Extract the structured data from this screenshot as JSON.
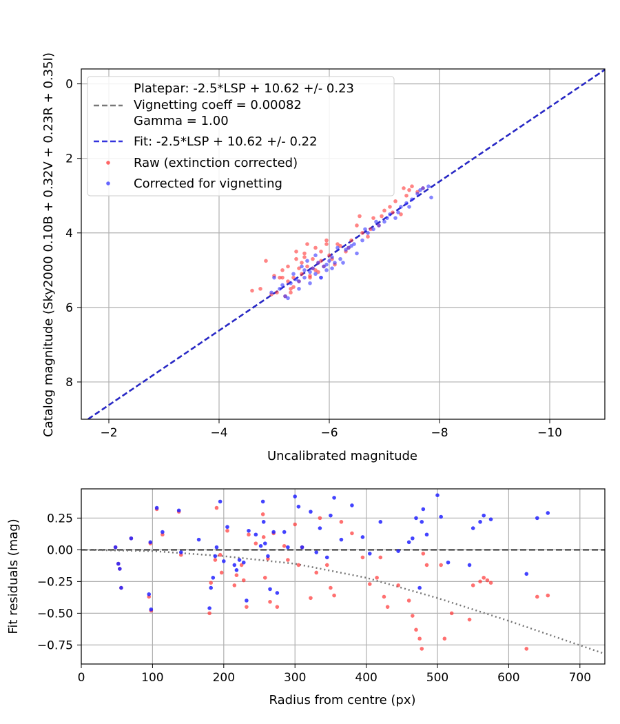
{
  "chart_data": [
    {
      "type": "scatter",
      "xlabel": "Uncalibrated magnitude",
      "ylabel": "Catalog magnitude (Sky2000 0.10B + 0.32V + 0.23R + 0.35I)",
      "xlim": [
        -1.5,
        -11.0
      ],
      "ylim": [
        9.0,
        -0.4
      ],
      "x_inverted": true,
      "y_inverted": true,
      "xticks": [
        -2,
        -4,
        -6,
        -8,
        -10
      ],
      "xtick_labels": [
        "−2",
        "−4",
        "−6",
        "−8",
        "−10"
      ],
      "yticks": [
        0,
        2,
        4,
        6,
        8
      ],
      "ytick_labels": [
        "0",
        "2",
        "4",
        "6",
        "8"
      ],
      "grid": true,
      "legend_position": "top-left",
      "legend": [
        {
          "label": "Platepar: -2.5*LSP + 10.62 +/- 0.23\nVignetting coeff = 0.00082\nGamma = 1.00",
          "style": "dashed",
          "color": "#777777"
        },
        {
          "label": "Fit: -2.5*LSP + 10.62 +/- 0.22",
          "style": "dashed",
          "color": "#3333dd"
        },
        {
          "label": "Raw (extinction corrected)",
          "style": "marker",
          "color": "#ff3333"
        },
        {
          "label": "Corrected for vignetting",
          "style": "marker",
          "color": "#3333ff"
        }
      ],
      "lines": [
        {
          "name": "Platepar",
          "slope": 1.0,
          "intercept": 10.62,
          "color": "#777777"
        },
        {
          "name": "Fit",
          "slope": 1.0,
          "intercept": 10.62,
          "color": "#2222cc"
        }
      ],
      "series": [
        {
          "name": "Raw (extinction corrected)",
          "color": "#ff3333",
          "x": [
            -4.6,
            -4.75,
            -4.85,
            -5.0,
            -5.05,
            -5.1,
            -5.15,
            -5.2,
            -5.25,
            -5.3,
            -5.3,
            -5.35,
            -5.4,
            -5.4,
            -5.45,
            -5.5,
            -5.5,
            -5.55,
            -5.6,
            -5.6,
            -5.65,
            -5.7,
            -5.7,
            -5.75,
            -5.8,
            -5.8,
            -5.85,
            -5.9,
            -5.95,
            -6.0,
            -6.05,
            -6.1,
            -6.2,
            -6.3,
            -6.4,
            -6.5,
            -6.6,
            -6.7,
            -6.8,
            -6.9,
            -7.0,
            -7.1,
            -7.2,
            -7.3,
            -7.35,
            -7.4,
            -7.5,
            -7.6,
            -7.7,
            -4.95,
            -5.25,
            -5.45,
            -5.55,
            -5.75,
            -5.95,
            -6.15,
            -6.35,
            -6.55,
            -6.75,
            -6.95,
            -7.15,
            -7.45,
            -5.15,
            -5.35,
            -5.65,
            -5.85
          ],
          "y": [
            5.55,
            5.5,
            4.75,
            5.15,
            5.6,
            5.2,
            5.0,
            5.7,
            4.9,
            5.5,
            5.6,
            5.2,
            4.7,
            4.5,
            5.3,
            4.8,
            5.1,
            4.55,
            4.9,
            4.3,
            5.2,
            4.7,
            4.95,
            5.0,
            4.8,
            5.05,
            4.5,
            4.9,
            4.3,
            4.6,
            4.7,
            4.85,
            4.35,
            4.5,
            4.2,
            3.8,
            4.0,
            4.1,
            3.6,
            3.8,
            3.4,
            3.3,
            3.15,
            3.5,
            2.8,
            3.0,
            2.75,
            2.9,
            2.8,
            5.65,
            5.3,
            4.95,
            4.65,
            4.4,
            4.2,
            4.3,
            4.4,
            3.55,
            3.9,
            3.55,
            3.45,
            2.85,
            5.2,
            5.45,
            5.15,
            4.75
          ]
        },
        {
          "name": "Corrected for vignetting",
          "color": "#3333ff",
          "x": [
            -4.95,
            -5.0,
            -5.1,
            -5.2,
            -5.3,
            -5.35,
            -5.4,
            -5.45,
            -5.5,
            -5.55,
            -5.6,
            -5.65,
            -5.7,
            -5.75,
            -5.8,
            -5.85,
            -5.9,
            -5.95,
            -6.0,
            -6.05,
            -6.1,
            -6.15,
            -6.2,
            -6.3,
            -6.4,
            -6.5,
            -6.6,
            -6.7,
            -6.8,
            -6.9,
            -7.0,
            -7.1,
            -7.2,
            -7.3,
            -7.4,
            -7.5,
            -7.6,
            -7.7,
            -7.8,
            -7.85,
            -5.25,
            -5.45,
            -5.65,
            -5.85,
            -6.05,
            -6.25,
            -6.45,
            -6.65,
            -6.85,
            -7.05,
            -7.25,
            -7.45,
            -7.65,
            -5.15,
            -5.55,
            -5.75,
            -5.95,
            -6.35
          ],
          "y": [
            5.6,
            5.2,
            5.5,
            5.7,
            5.35,
            5.1,
            5.25,
            5.5,
            4.9,
            5.2,
            4.75,
            5.35,
            4.95,
            5.1,
            4.8,
            5.2,
            4.9,
            5.0,
            4.75,
            4.95,
            4.8,
            4.4,
            4.7,
            4.45,
            4.35,
            4.55,
            4.2,
            4.0,
            3.9,
            3.8,
            3.7,
            3.5,
            3.6,
            3.3,
            3.2,
            3.1,
            2.95,
            2.8,
            2.75,
            3.05,
            5.75,
            5.3,
            5.05,
            5.2,
            4.65,
            4.8,
            4.3,
            3.9,
            3.7,
            3.6,
            3.45,
            3.3,
            2.85,
            5.4,
            5.0,
            4.6,
            4.85,
            4.4
          ]
        }
      ]
    },
    {
      "type": "scatter",
      "xlabel": "Radius from centre (px)",
      "ylabel": "Fit residuals (mag)",
      "xlim": [
        0,
        735
      ],
      "ylim": [
        -0.9,
        0.48
      ],
      "xticks": [
        0,
        100,
        200,
        300,
        400,
        500,
        600,
        700
      ],
      "xtick_labels": [
        "0",
        "100",
        "200",
        "300",
        "400",
        "500",
        "600",
        "700"
      ],
      "yticks": [
        0.25,
        0.0,
        -0.25,
        -0.5,
        -0.75
      ],
      "ytick_labels": [
        "0.25",
        "0.00",
        "−0.25",
        "−0.50",
        "−0.75"
      ],
      "grid": true,
      "reference_line": {
        "y": 0.0,
        "style": "dashed",
        "color": "#555555"
      },
      "vignetting_curve": {
        "style": "dotted",
        "color": "#777777",
        "x": [
          0,
          100,
          200,
          300,
          400,
          500,
          600,
          735
        ],
        "y": [
          0.0,
          -0.01,
          -0.05,
          -0.11,
          -0.22,
          -0.38,
          -0.56,
          -0.82
        ]
      },
      "series": [
        {
          "name": "Raw (extinction corrected)",
          "color": "#ff3333",
          "x": [
            48,
            52,
            54,
            56,
            70,
            95,
            97,
            98,
            106,
            114,
            137,
            140,
            180,
            182,
            188,
            190,
            195,
            197,
            205,
            215,
            218,
            225,
            228,
            232,
            235,
            245,
            255,
            256,
            258,
            262,
            265,
            270,
            275,
            285,
            290,
            300,
            305,
            310,
            322,
            330,
            335,
            345,
            350,
            355,
            365,
            380,
            395,
            405,
            415,
            420,
            425,
            430,
            445,
            460,
            465,
            470,
            475,
            478,
            480,
            485,
            505,
            510,
            520,
            545,
            550,
            560,
            565,
            570,
            575,
            625,
            640,
            655
          ],
          "y": [
            0.02,
            -0.11,
            -0.15,
            -0.3,
            0.09,
            -0.37,
            0.05,
            -0.48,
            0.32,
            0.12,
            0.3,
            -0.04,
            -0.5,
            -0.26,
            -0.08,
            0.33,
            -0.04,
            -0.18,
            0.15,
            -0.28,
            -0.2,
            -0.12,
            -0.24,
            -0.45,
            0.12,
            0.05,
            0.28,
            0.1,
            -0.22,
            -0.07,
            -0.41,
            0.13,
            -0.45,
            0.03,
            -0.08,
            0.2,
            -0.12,
            0.02,
            -0.38,
            -0.18,
            0.25,
            -0.12,
            -0.3,
            -0.36,
            0.22,
            0.13,
            -0.06,
            -0.27,
            -0.22,
            -0.06,
            -0.37,
            -0.45,
            -0.28,
            -0.4,
            -0.52,
            -0.63,
            -0.7,
            -0.78,
            -0.03,
            -0.12,
            -0.12,
            -0.7,
            -0.5,
            -0.55,
            -0.28,
            -0.25,
            -0.22,
            -0.24,
            -0.26,
            -0.78,
            -0.37,
            -0.36
          ]
        },
        {
          "name": "Corrected for vignetting",
          "color": "#2222ff",
          "x": [
            48,
            52,
            54,
            56,
            70,
            95,
            97,
            98,
            106,
            114,
            137,
            140,
            165,
            180,
            182,
            185,
            188,
            190,
            195,
            200,
            205,
            215,
            218,
            222,
            228,
            232,
            235,
            245,
            252,
            255,
            256,
            258,
            262,
            265,
            270,
            275,
            285,
            290,
            300,
            305,
            310,
            322,
            330,
            335,
            345,
            350,
            355,
            365,
            380,
            395,
            405,
            420,
            445,
            460,
            465,
            470,
            475,
            478,
            480,
            485,
            500,
            505,
            515,
            545,
            550,
            560,
            565,
            575,
            625,
            640,
            655
          ],
          "y": [
            0.02,
            -0.11,
            -0.15,
            -0.3,
            0.09,
            -0.35,
            0.06,
            -0.47,
            0.33,
            0.14,
            0.31,
            -0.02,
            0.08,
            -0.46,
            -0.3,
            -0.22,
            -0.05,
            0.02,
            0.38,
            -0.09,
            0.18,
            -0.12,
            -0.16,
            -0.08,
            -0.1,
            -0.4,
            0.15,
            0.12,
            0.03,
            0.38,
            0.22,
            0.05,
            -0.05,
            -0.31,
            0.14,
            -0.34,
            0.14,
            0.02,
            0.42,
            0.34,
            0.02,
            0.3,
            -0.02,
            0.17,
            -0.06,
            0.27,
            0.41,
            0.08,
            0.35,
            0.1,
            -0.03,
            0.22,
            -0.01,
            0.06,
            0.09,
            0.25,
            -0.3,
            0.22,
            0.32,
            0.12,
            0.43,
            0.26,
            -0.1,
            -0.12,
            0.17,
            0.22,
            0.27,
            0.24,
            -0.19,
            0.25,
            0.29
          ]
        }
      ]
    }
  ]
}
